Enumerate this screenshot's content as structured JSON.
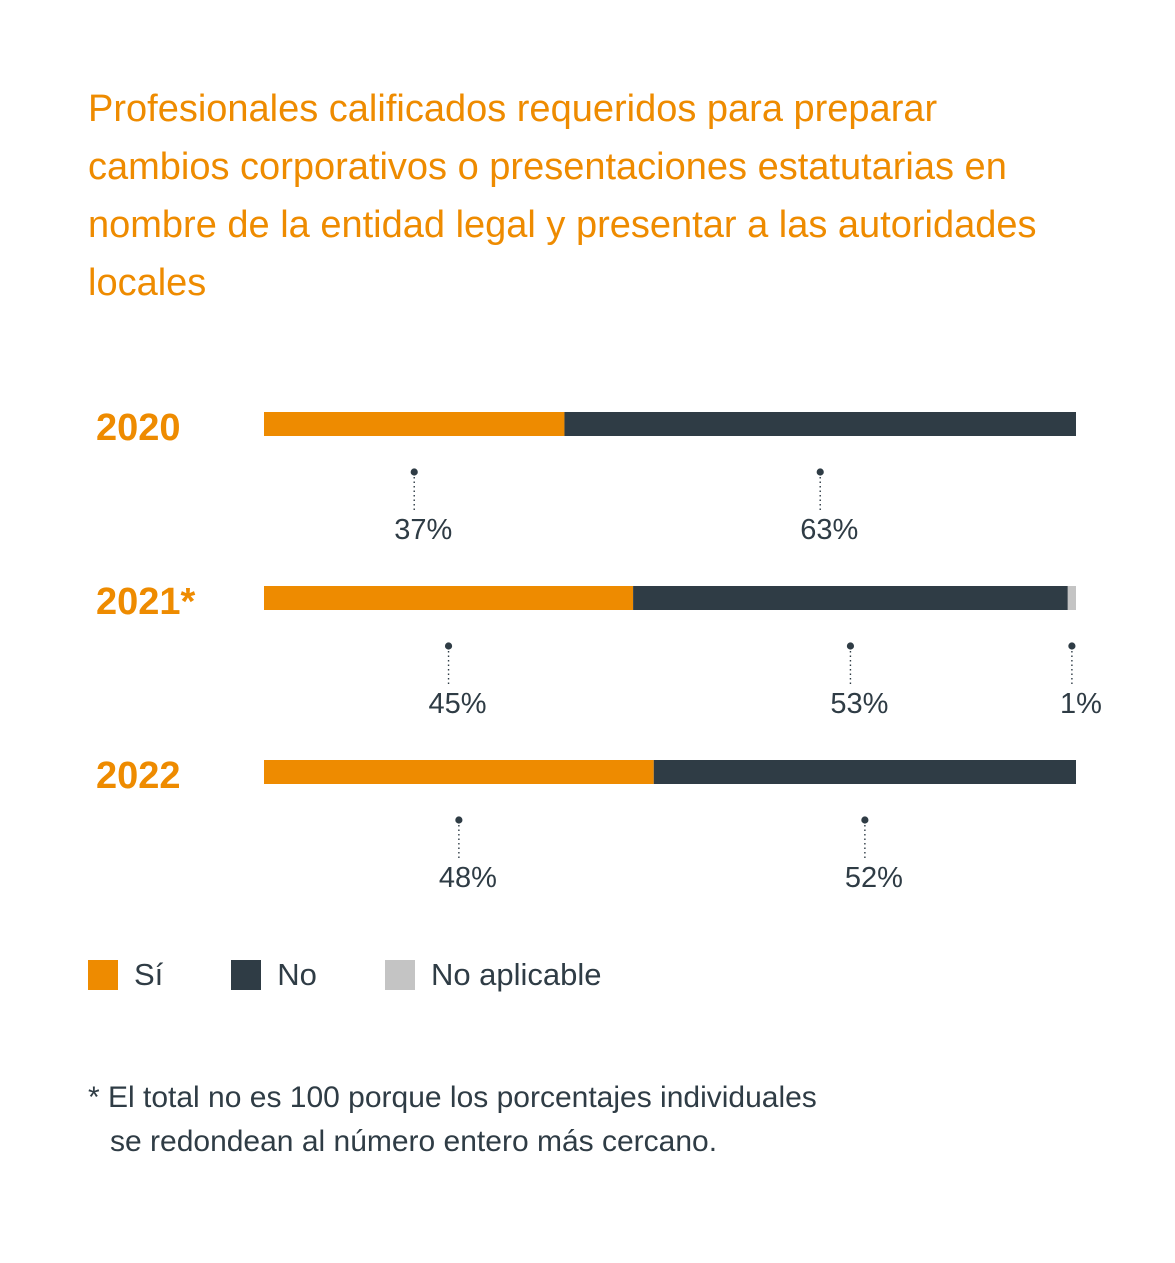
{
  "chart_data": {
    "type": "bar",
    "orientation": "horizontal-stacked",
    "title": "Profesionales calificados requeridos para preparar cambios corporativos o presentaciones estatutarias en nombre de la entidad legal y presentar a las autoridades locales",
    "categories": [
      "2020",
      "2021*",
      "2022"
    ],
    "series": [
      {
        "name": "Sí",
        "color": "#EE8B00",
        "values": [
          37,
          45,
          48
        ]
      },
      {
        "name": "No",
        "color": "#2F3C45",
        "values": [
          63,
          53,
          52
        ]
      },
      {
        "name": "No aplicable",
        "color": "#C4C4C4",
        "values": [
          0,
          1,
          0
        ]
      }
    ],
    "data_labels": [
      [
        "37%",
        "63%",
        ""
      ],
      [
        "45%",
        "53%",
        "1%"
      ],
      [
        "48%",
        "52%",
        ""
      ]
    ],
    "legend_position": "bottom-left",
    "grid": false
  },
  "footnote": {
    "line1": "* El total no es 100 porque los porcentajes individuales",
    "line2": "se redondean al número entero más cercano."
  },
  "colors": {
    "accent": "#EE8B00",
    "dark": "#2F3C45",
    "na": "#C4C4C4",
    "dot": "#2F3C45"
  }
}
